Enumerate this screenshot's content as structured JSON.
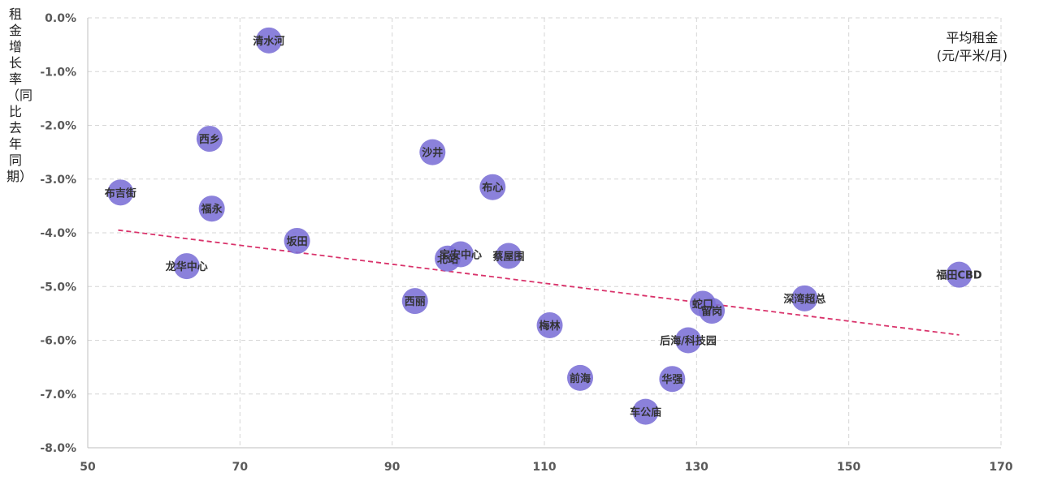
{
  "chart_data": {
    "type": "scatter",
    "title": "",
    "xlabel_line1": "平均租金",
    "xlabel_line2": "(元/平米/月)",
    "ylabel": "租金增长率（同比去年同期）",
    "xlim": [
      50,
      170
    ],
    "ylim": [
      -8.0,
      0.0
    ],
    "x_ticks": [
      50,
      70,
      90,
      110,
      130,
      150,
      170
    ],
    "y_ticks": [
      0,
      -1,
      -2,
      -3,
      -4,
      -5,
      -6,
      -7,
      -8
    ],
    "y_tick_labels": [
      "0.0%",
      "-1.0%",
      "-2.0%",
      "-3.0%",
      "-4.0%",
      "-5.0%",
      "-6.0%",
      "-7.0%",
      "-8.0%"
    ],
    "grid": true,
    "point_color": "#7b6fd6",
    "trendline": {
      "color": "#d9336b",
      "style": "dashed",
      "x": [
        54,
        164.5
      ],
      "y": [
        -3.95,
        -5.9
      ]
    },
    "points": [
      {
        "label": "清水河",
        "x": 73.8,
        "y": -0.42
      },
      {
        "label": "西乡",
        "x": 66.0,
        "y": -2.25
      },
      {
        "label": "沙井",
        "x": 95.3,
        "y": -2.5
      },
      {
        "label": "布吉街",
        "x": 54.3,
        "y": -3.25
      },
      {
        "label": "布心",
        "x": 103.2,
        "y": -3.15
      },
      {
        "label": "福永",
        "x": 66.3,
        "y": -3.55
      },
      {
        "label": "坂田",
        "x": 77.5,
        "y": -4.15
      },
      {
        "label": "宝安中心",
        "x": 99.0,
        "y": -4.4
      },
      {
        "label": "蔡屋围",
        "x": 105.3,
        "y": -4.43
      },
      {
        "label": "北站",
        "x": 97.3,
        "y": -4.48
      },
      {
        "label": "龙华中心",
        "x": 63.0,
        "y": -4.62
      },
      {
        "label": "福田CBD",
        "x": 164.5,
        "y": -4.78
      },
      {
        "label": "西丽",
        "x": 93.0,
        "y": -5.27
      },
      {
        "label": "深湾超总",
        "x": 144.2,
        "y": -5.22
      },
      {
        "label": "蛇口",
        "x": 130.8,
        "y": -5.32
      },
      {
        "label": "留岗",
        "x": 132.0,
        "y": -5.45
      },
      {
        "label": "梅林",
        "x": 110.7,
        "y": -5.72
      },
      {
        "label": "后海/科技园",
        "x": 128.9,
        "y": -6.0
      },
      {
        "label": "前海",
        "x": 114.7,
        "y": -6.7
      },
      {
        "label": "华强",
        "x": 126.8,
        "y": -6.72
      },
      {
        "label": "车公庙",
        "x": 123.3,
        "y": -7.33
      }
    ]
  }
}
